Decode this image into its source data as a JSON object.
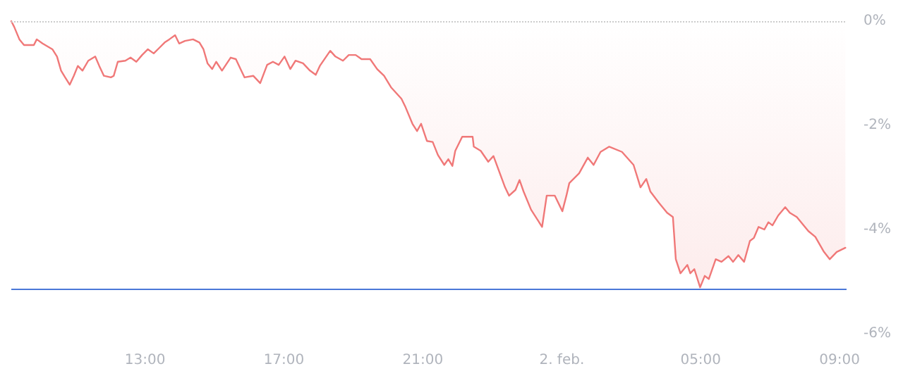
{
  "chart_data": {
    "type": "area",
    "x": [
      "--02-01T09:09",
      "--02-01T09:14",
      "--02-01T09:23",
      "--02-01T09:31",
      "--02-01T09:48",
      "--02-01T09:53",
      "--02-01T10:03",
      "--02-01T10:20",
      "--02-01T10:28",
      "--02-01T10:35",
      "--02-01T10:42",
      "--02-01T10:50",
      "--02-01T10:57",
      "--02-01T11:04",
      "--02-01T11:12",
      "--02-01T11:22",
      "--02-01T11:34",
      "--02-01T11:41",
      "--02-01T11:49",
      "--02-01T12:01",
      "--02-01T12:06",
      "--02-01T12:13",
      "--02-01T12:26",
      "--02-01T12:35",
      "--02-01T12:45",
      "--02-01T12:55",
      "--02-01T13:05",
      "--02-01T13:15",
      "--02-01T13:25",
      "--02-01T13:34",
      "--02-01T13:42",
      "--02-01T13:52",
      "--02-01T13:59",
      "--02-01T14:09",
      "--02-01T14:23",
      "--02-01T14:34",
      "--02-01T14:41",
      "--02-01T14:48",
      "--02-01T14:56",
      "--02-01T15:03",
      "--02-01T15:13",
      "--02-01T15:28",
      "--02-01T15:37",
      "--02-01T15:45",
      "--02-01T15:52",
      "--02-01T16:07",
      "--02-01T16:19",
      "--02-01T16:31",
      "--02-01T16:41",
      "--02-01T16:51",
      "--02-01T17:01",
      "--02-01T17:11",
      "--02-01T17:20",
      "--02-01T17:33",
      "--02-01T17:45",
      "--02-01T17:55",
      "--02-01T18:02",
      "--02-01T18:20",
      "--02-01T18:29",
      "--02-01T18:42",
      "--02-01T18:52",
      "--02-01T19:04",
      "--02-01T19:14",
      "--02-01T19:29",
      "--02-01T19:41",
      "--02-01T19:53",
      "--02-01T20:05",
      "--02-01T20:23",
      "--02-01T20:30",
      "--02-01T20:42",
      "--02-01T20:50",
      "--02-01T20:57",
      "--02-01T21:07",
      "--02-01T21:17",
      "--02-01T21:26",
      "--02-01T21:37",
      "--02-01T21:44",
      "--02-01T21:51",
      "--02-01T21:56",
      "--02-01T22:08",
      "--02-01T22:26",
      "--02-01T22:28",
      "--02-01T22:40",
      "--02-01T22:53",
      "--02-01T23:02",
      "--02-01T23:22",
      "--02-01T23:29",
      "--02-01T23:40",
      "--02-01T23:47",
      "--02-01T23:54",
      "--02-02T00:07",
      "--02-02T00:26",
      "--02-02T00:34",
      "--02-02T00:48",
      "--02-02T01:01",
      "--02-02T01:08",
      "--02-02T01:13",
      "--02-02T01:30",
      "--02-02T01:45",
      "--02-02T01:55",
      "--02-02T02:07",
      "--02-02T02:22",
      "--02-02T02:44",
      "--02-02T03:04",
      "--02-02T03:16",
      "--02-02T03:26",
      "--02-02T03:33",
      "--02-02T03:48",
      "--02-02T04:02",
      "--02-02T04:12",
      "--02-02T04:17",
      "--02-02T04:25",
      "--02-02T04:37",
      "--02-02T04:42",
      "--02-02T04:49",
      "--02-02T04:59",
      "--02-02T05:07",
      "--02-02T05:14",
      "--02-02T05:26",
      "--02-02T05:36",
      "--02-02T05:48",
      "--02-02T05:56",
      "--02-02T06:05",
      "--02-02T06:15",
      "--02-02T06:25",
      "--02-02T06:32",
      "--02-02T06:40",
      "--02-02T06:50",
      "--02-02T06:57",
      "--02-02T07:04",
      "--02-02T07:14",
      "--02-02T07:26",
      "--02-02T07:34",
      "--02-02T07:46",
      "--02-02T08:06",
      "--02-02T08:18",
      "--02-02T08:33",
      "--02-02T08:43",
      "--02-02T08:55",
      "--02-02T09:10"
    ],
    "series": [
      {
        "color": "#f07878",
        "values": [
          0,
          -0.11,
          -0.35,
          -0.46,
          -0.46,
          -0.35,
          -0.43,
          -0.54,
          -0.68,
          -0.95,
          -1.08,
          -1.22,
          -1.05,
          -0.86,
          -0.95,
          -0.76,
          -0.68,
          -0.86,
          -1.05,
          -1.08,
          -1.05,
          -0.78,
          -0.76,
          -0.7,
          -0.78,
          -0.65,
          -0.54,
          -0.62,
          -0.51,
          -0.41,
          -0.35,
          -0.27,
          -0.43,
          -0.38,
          -0.35,
          -0.41,
          -0.54,
          -0.81,
          -0.92,
          -0.78,
          -0.95,
          -0.7,
          -0.73,
          -0.92,
          -1.08,
          -1.05,
          -1.19,
          -0.84,
          -0.78,
          -0.84,
          -0.68,
          -0.92,
          -0.76,
          -0.81,
          -0.95,
          -1.03,
          -0.86,
          -0.57,
          -0.68,
          -0.76,
          -0.65,
          -0.65,
          -0.73,
          -0.73,
          -0.92,
          -1.05,
          -1.27,
          -1.49,
          -1.65,
          -1.97,
          -2.11,
          -1.97,
          -2.3,
          -2.32,
          -2.57,
          -2.76,
          -2.65,
          -2.78,
          -2.49,
          -2.22,
          -2.22,
          -2.41,
          -2.49,
          -2.7,
          -2.59,
          -3.19,
          -3.35,
          -3.24,
          -3.05,
          -3.27,
          -3.62,
          -3.95,
          -3.35,
          -3.35,
          -3.65,
          -3.35,
          -3.11,
          -2.92,
          -2.62,
          -2.76,
          -2.51,
          -2.41,
          -2.51,
          -2.76,
          -3.19,
          -3.03,
          -3.27,
          -3.49,
          -3.68,
          -3.76,
          -4.57,
          -4.84,
          -4.68,
          -4.84,
          -4.76,
          -5.11,
          -4.89,
          -4.95,
          -4.57,
          -4.62,
          -4.51,
          -4.62,
          -4.49,
          -4.62,
          -4.22,
          -4.16,
          -3.95,
          -4.0,
          -3.86,
          -3.92,
          -3.73,
          -3.57,
          -3.68,
          -3.76,
          -4.03,
          -4.14,
          -4.43,
          -4.57,
          -4.43,
          -4.35
        ]
      }
    ],
    "xlim": [
      "--02-01T09:09",
      "--02-02T09:12"
    ],
    "xticks": [
      {
        "value": "--02-01T13:00",
        "label": "13:00"
      },
      {
        "value": "--02-01T17:00",
        "label": "17:00"
      },
      {
        "value": "--02-01T21:00",
        "label": "21:00"
      },
      {
        "value": "--02-02T01:00",
        "label": "2. feb."
      },
      {
        "value": "--02-02T05:00",
        "label": "05:00"
      },
      {
        "value": "--02-02T09:00",
        "label": "09:00"
      }
    ],
    "ylim": [
      -6,
      0
    ],
    "yticks": [
      {
        "value": 0,
        "label": "0%"
      },
      {
        "value": -2,
        "label": "-2%"
      },
      {
        "value": -4,
        "label": "-4%"
      },
      {
        "value": -6,
        "label": "-6%"
      }
    ],
    "ref_lines": [
      {
        "axis": "y",
        "value": 0,
        "color": "#cccccc",
        "line_style": "dotted"
      },
      {
        "axis": "y",
        "value": -5.13,
        "color": "#4a78d8",
        "line_style": "solid"
      }
    ],
    "grid": false,
    "marker": "none",
    "line_style": "solid"
  }
}
